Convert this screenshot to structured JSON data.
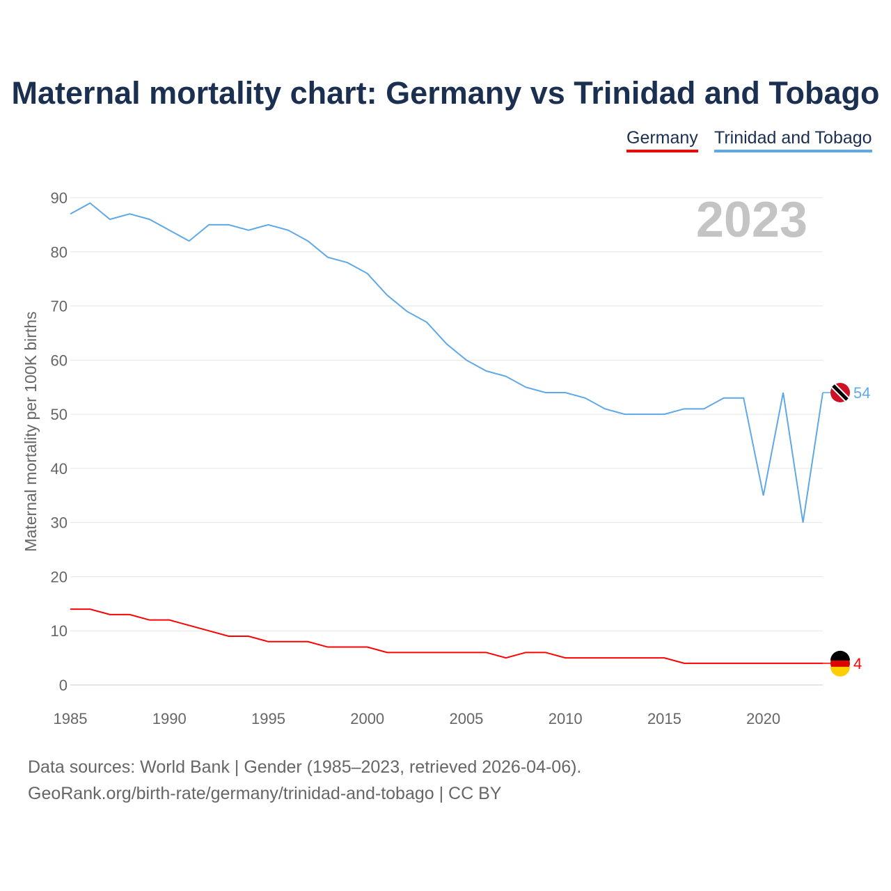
{
  "title": "Maternal mortality chart: Germany vs Trinidad and Tobago",
  "legend": [
    "Germany",
    "Trinidad and Tobago"
  ],
  "year_label": "2023",
  "footer": {
    "line1": "Data sources: World Bank | Gender (1985–2023, retrieved 2026-04-06).",
    "line2": "GeoRank.org/birth-rate/germany/trinidad-and-tobago | CC BY"
  },
  "chart_data": {
    "type": "line",
    "title": "Maternal mortality chart: Germany vs Trinidad and Tobago",
    "xlabel": "",
    "ylabel": "Maternal mortality per 100K births",
    "xlim": [
      1985,
      2023
    ],
    "ylim": [
      0,
      90
    ],
    "xticks": [
      1985,
      1990,
      1995,
      2000,
      2005,
      2010,
      2015,
      2020
    ],
    "yticks": [
      0,
      10,
      20,
      30,
      40,
      50,
      60,
      70,
      80,
      90
    ],
    "grid": true,
    "legend_position": "top-right",
    "x": [
      1985,
      1986,
      1987,
      1988,
      1989,
      1990,
      1991,
      1992,
      1993,
      1994,
      1995,
      1996,
      1997,
      1998,
      1999,
      2000,
      2001,
      2002,
      2003,
      2004,
      2005,
      2006,
      2007,
      2008,
      2009,
      2010,
      2011,
      2012,
      2013,
      2014,
      2015,
      2016,
      2017,
      2018,
      2019,
      2020,
      2021,
      2022,
      2023
    ],
    "series": [
      {
        "name": "Germany",
        "color": "#ff0000",
        "end_label": "4",
        "values": [
          14,
          14,
          13,
          13,
          12,
          12,
          11,
          10,
          9,
          9,
          8,
          8,
          8,
          7,
          7,
          7,
          6,
          6,
          6,
          6,
          6,
          6,
          5,
          6,
          6,
          5,
          5,
          5,
          5,
          5,
          5,
          4,
          4,
          4,
          4,
          4,
          4,
          4,
          4
        ]
      },
      {
        "name": "Trinidad and Tobago",
        "color": "#5fa8e8",
        "end_label": "54",
        "values": [
          87,
          89,
          86,
          87,
          86,
          84,
          82,
          85,
          85,
          84,
          85,
          84,
          82,
          79,
          78,
          76,
          72,
          69,
          67,
          63,
          60,
          58,
          57,
          55,
          54,
          54,
          53,
          51,
          50,
          50,
          50,
          51,
          51,
          53,
          53,
          35,
          54,
          30,
          54
        ]
      }
    ]
  }
}
